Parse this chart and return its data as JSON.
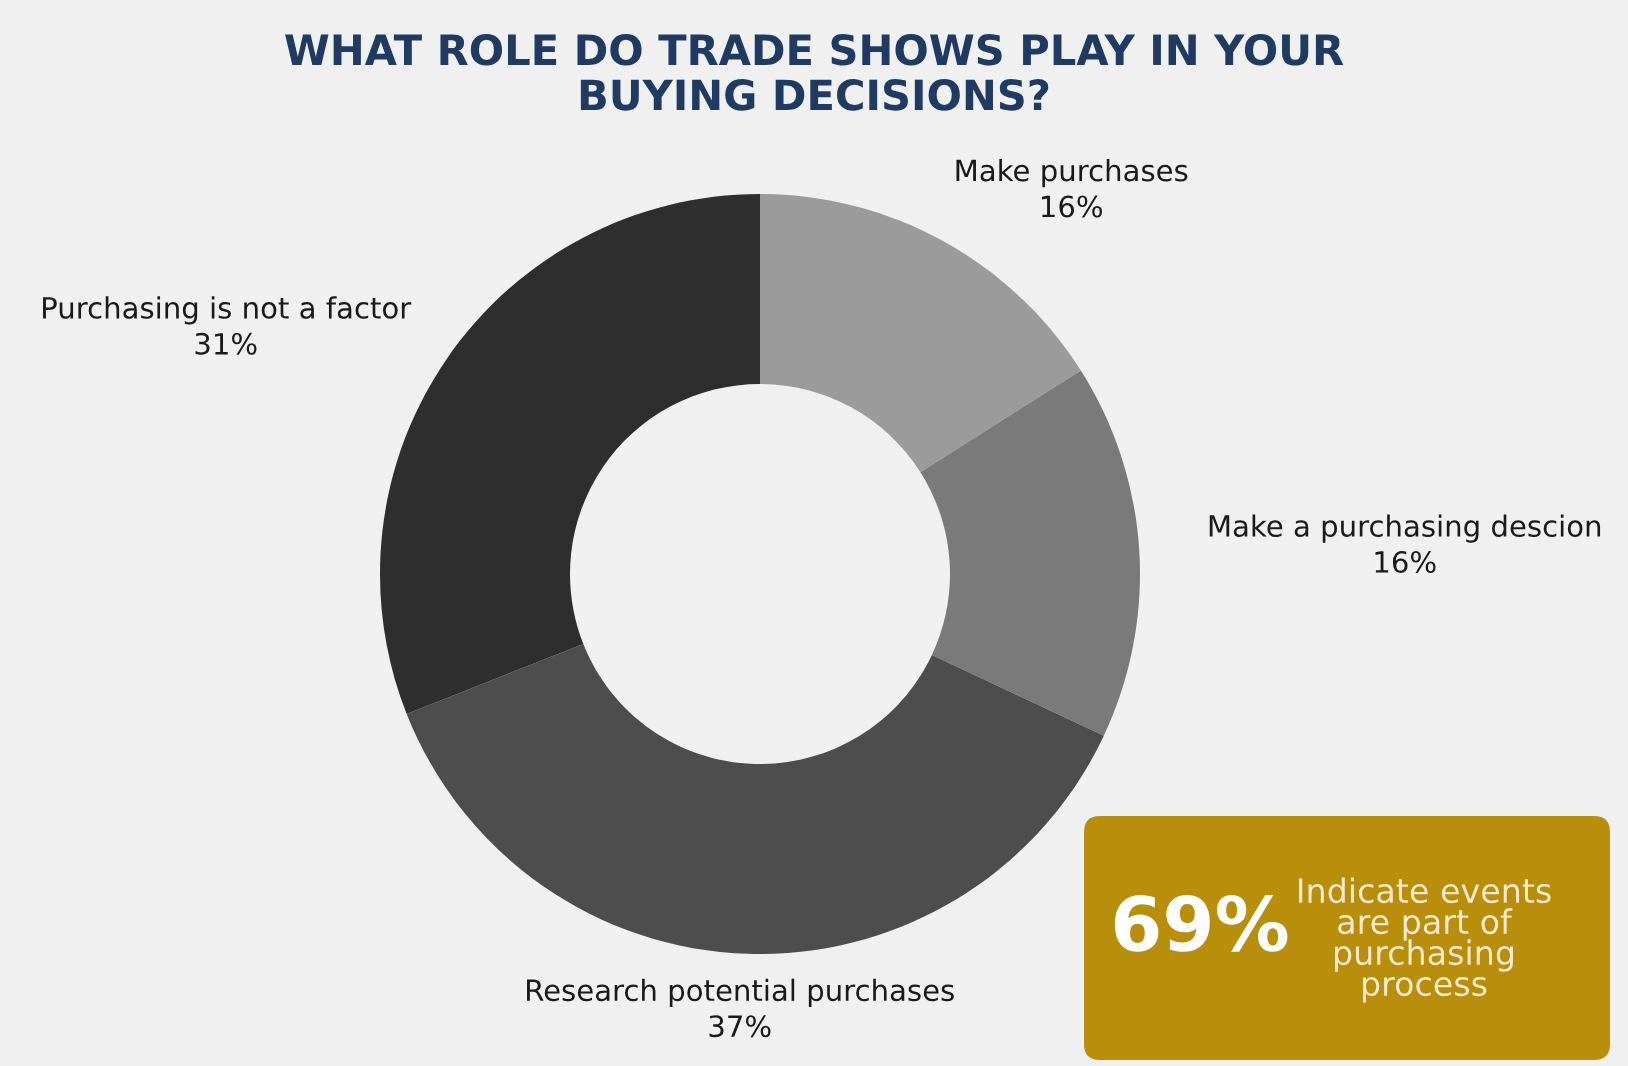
{
  "chart_data": {
    "type": "donut",
    "title": "WHAT ROLE DO TRADE SHOWS PLAY IN YOUR\nBUYING DECISIONS?",
    "categories": [
      "Make purchases",
      "Make a purchasing descion",
      "Research potential purchases",
      "Purchasing is not a factor"
    ],
    "values": [
      16,
      16,
      37,
      31
    ],
    "value_labels": [
      "16%",
      "16%",
      "37%",
      "31%"
    ],
    "colors": [
      "#9b9b9b",
      "#7a7a7a",
      "#4d4d4d",
      "#2e2e2e"
    ],
    "annotations": [
      "69%",
      "Indicate events\nare part of\npurchasing\nprocess"
    ]
  }
}
